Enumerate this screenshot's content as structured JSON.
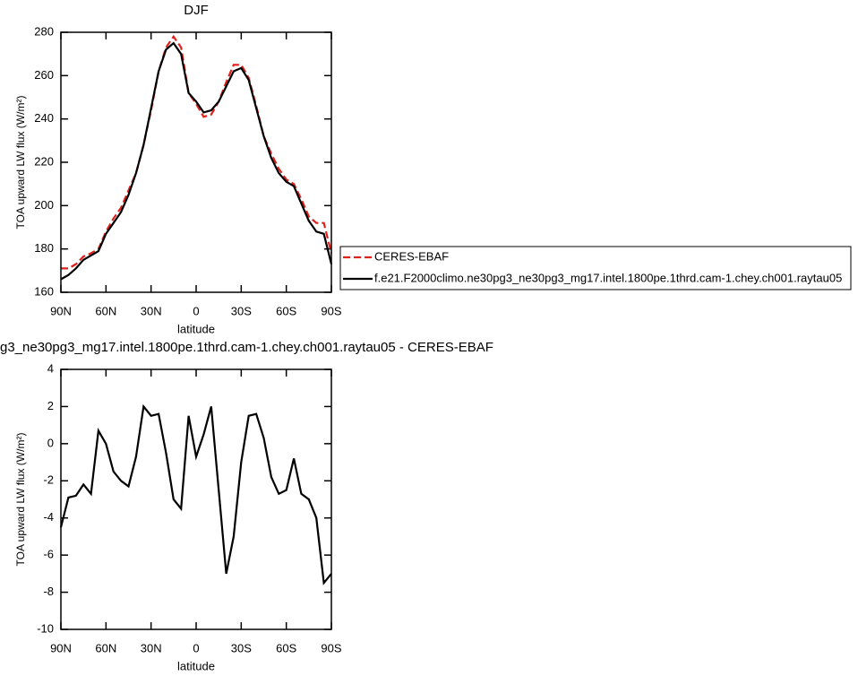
{
  "chart_data": [
    {
      "type": "line",
      "title": "DJF",
      "xlabel": "latitude",
      "ylabel": "TOA upward LW flux (W/m²)",
      "x": [
        90,
        85,
        80,
        75,
        70,
        65,
        60,
        55,
        50,
        45,
        40,
        35,
        30,
        25,
        20,
        15,
        10,
        5,
        0,
        -5,
        -10,
        -15,
        -20,
        -25,
        -30,
        -35,
        -40,
        -45,
        -50,
        -55,
        -60,
        -65,
        -70,
        -75,
        -80,
        -85,
        -90
      ],
      "series": [
        {
          "name": "CERES-EBAF",
          "color": "#e0201b",
          "dashed": true,
          "values": [
            171,
            171,
            173,
            176.5,
            178,
            180,
            188,
            194,
            199,
            207,
            215,
            228,
            244,
            262,
            273,
            278,
            273,
            252,
            247,
            241,
            242,
            248,
            257,
            265,
            265,
            259,
            246,
            232,
            224,
            217,
            212,
            210,
            203,
            195,
            192,
            192,
            178
          ]
        },
        {
          "name": "f.e21.F2000climo.ne30pg3_ne30pg3_mg17.intel.1800pe.1thrd.cam-1.chey.ch001.raytau05",
          "color": "#000000",
          "dashed": false,
          "values": [
            166,
            168,
            171,
            175,
            177,
            179,
            187,
            192,
            197,
            205,
            215,
            228,
            245,
            262,
            272,
            275,
            270,
            252,
            248,
            243,
            244,
            248,
            255,
            262,
            263.5,
            258,
            245,
            232,
            222,
            215,
            211,
            209,
            201,
            193,
            188,
            187,
            173
          ]
        }
      ],
      "xlim": [
        90,
        -90
      ],
      "xticks": [
        {
          "value": 90,
          "label": "90N"
        },
        {
          "value": 60,
          "label": "60N"
        },
        {
          "value": 30,
          "label": "30N"
        },
        0,
        {
          "value": -30,
          "label": "30S"
        },
        {
          "value": -60,
          "label": "60S"
        },
        {
          "value": -90,
          "label": "90S"
        }
      ],
      "ylim": [
        160,
        280
      ],
      "yticks": [
        160,
        180,
        200,
        220,
        240,
        260,
        280
      ],
      "legend": "right"
    },
    {
      "type": "line",
      "title": "g3_ne30pg3_mg17.intel.1800pe.1thrd.cam-1.chey.ch001.raytau05 - CERES-EBAF",
      "xlabel": "latitude",
      "ylabel": "TOA upward LW flux (W/m²)",
      "x": [
        90,
        85,
        80,
        75,
        70,
        65,
        60,
        55,
        50,
        45,
        40,
        35,
        30,
        25,
        20,
        15,
        10,
        5,
        0,
        -5,
        -10,
        -15,
        -20,
        -25,
        -30,
        -35,
        -40,
        -45,
        -50,
        -55,
        -60,
        -65,
        -70,
        -75,
        -80,
        -85,
        -90
      ],
      "series": [
        {
          "color": "#000000",
          "dashed": false,
          "values": [
            -4.5,
            -2.9,
            -2.8,
            -2.2,
            -2.7,
            0.7,
            0.0,
            -1.5,
            -2.0,
            -2.3,
            -0.7,
            2.0,
            1.5,
            1.6,
            -0.5,
            -3.0,
            -3.5,
            1.5,
            -0.7,
            0.5,
            2.0,
            -2.5,
            -7.0,
            -5.0,
            -1.0,
            1.5,
            1.6,
            0.3,
            -1.8,
            -2.7,
            -2.5,
            -0.8,
            -2.7,
            -3.0,
            -4.0,
            -7.5,
            -7
          ]
        }
      ],
      "xlim": [
        90,
        -90
      ],
      "xticks": [
        {
          "value": 90,
          "label": "90N"
        },
        {
          "value": 60,
          "label": "60N"
        },
        {
          "value": 30,
          "label": "30N"
        },
        0,
        {
          "value": -30,
          "label": "30S"
        },
        {
          "value": -60,
          "label": "60S"
        },
        {
          "value": -90,
          "label": "90S"
        }
      ],
      "ylim": [
        -10,
        4
      ],
      "yticks": [
        -10,
        -8,
        -6,
        -4,
        -2,
        0,
        2,
        4
      ]
    }
  ]
}
